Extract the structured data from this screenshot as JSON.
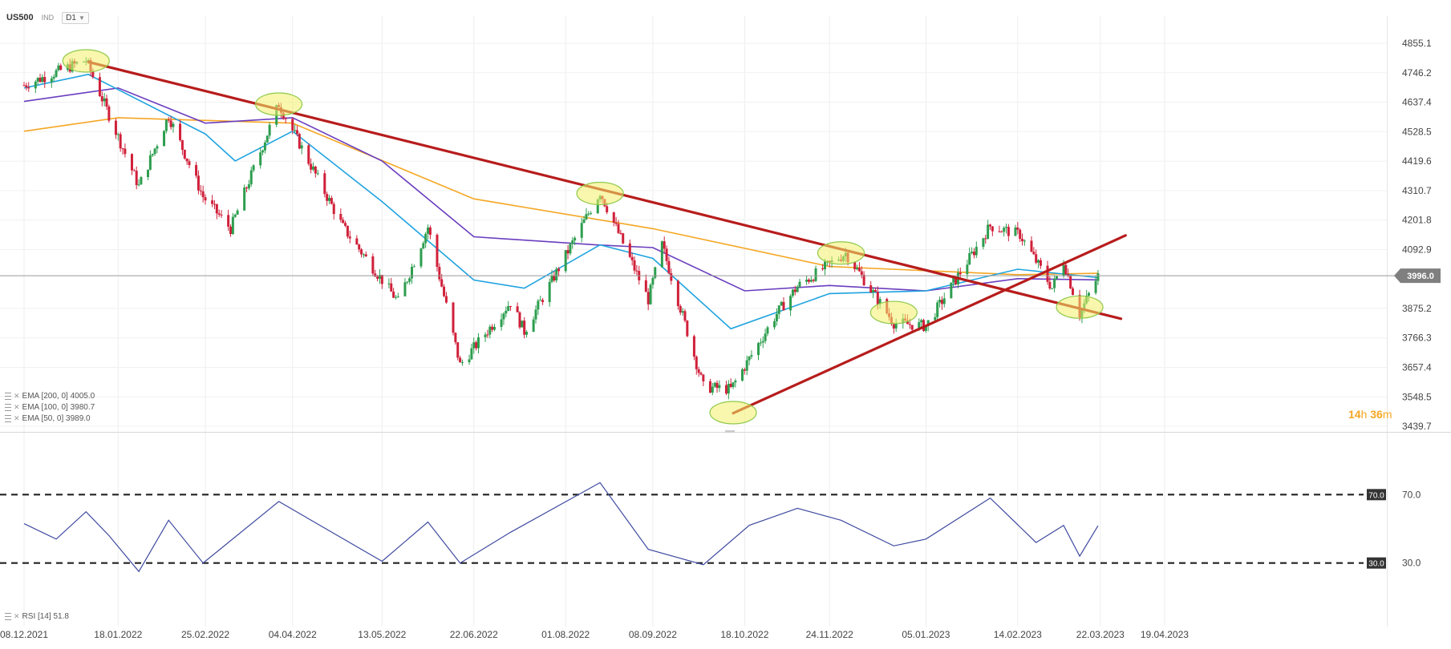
{
  "header": {
    "symbol": "US500",
    "instrument_type": "IND",
    "timeframe": "D1"
  },
  "price_axis": {
    "current_price_label": "3996.0",
    "current_price_color": "#7f7f7f"
  },
  "indicators": [
    {
      "label": "EMA [200, 0] 4005.0",
      "color": "#f5a623"
    },
    {
      "label": "EMA [100, 0] 3980.7",
      "color": "#6a3dbf"
    },
    {
      "label": "EMA [50, 0] 3989.0",
      "color": "#1fa3e0"
    }
  ],
  "rsi_legend": "RSI [14] 51.8",
  "countdown": {
    "hours": "14",
    "h_unit": "h",
    "minutes": "36",
    "m_unit": "m"
  },
  "chart_data": [
    {
      "type": "candlestick",
      "title": "US500",
      "timeframe": "D1",
      "x_ticks": [
        "08.12.2021",
        "18.01.2022",
        "25.02.2022",
        "04.04.2022",
        "13.05.2022",
        "22.06.2022",
        "01.08.2022",
        "08.09.2022",
        "18.10.2022",
        "24.11.2022",
        "05.01.2023",
        "14.02.2023",
        "22.03.2023",
        "19.04.2023"
      ],
      "y_ticks": [
        "4855.1",
        "4746.2",
        "4637.4",
        "4528.5",
        "4419.6",
        "4310.7",
        "4201.8",
        "4092.9",
        "3875.2",
        "3766.3",
        "3657.4",
        "3548.5",
        "3439.7"
      ],
      "ylim": [
        3439.7,
        4855.1
      ],
      "current_price": 3996.0,
      "close_trend": [
        {
          "date": "2021-12-08",
          "close": 4700
        },
        {
          "date": "2022-01-04",
          "close": 4793
        },
        {
          "date": "2022-01-27",
          "close": 4326
        },
        {
          "date": "2022-02-09",
          "close": 4587
        },
        {
          "date": "2022-02-24",
          "close": 4288
        },
        {
          "date": "2022-03-08",
          "close": 4170
        },
        {
          "date": "2022-03-29",
          "close": 4631
        },
        {
          "date": "2022-04-26",
          "close": 4175
        },
        {
          "date": "2022-05-20",
          "close": 3900
        },
        {
          "date": "2022-06-02",
          "close": 4176
        },
        {
          "date": "2022-06-16",
          "close": 3666
        },
        {
          "date": "2022-07-08",
          "close": 3899
        },
        {
          "date": "2022-07-14",
          "close": 3790
        },
        {
          "date": "2022-08-16",
          "close": 4305
        },
        {
          "date": "2022-09-06",
          "close": 3908
        },
        {
          "date": "2022-09-12",
          "close": 4110
        },
        {
          "date": "2022-09-30",
          "close": 3585
        },
        {
          "date": "2022-10-12",
          "close": 3577
        },
        {
          "date": "2022-11-01",
          "close": 3856
        },
        {
          "date": "2022-11-10",
          "close": 3956
        },
        {
          "date": "2022-12-01",
          "close": 4080
        },
        {
          "date": "2022-12-22",
          "close": 3822
        },
        {
          "date": "2023-01-05",
          "close": 3810
        },
        {
          "date": "2023-02-02",
          "close": 4180
        },
        {
          "date": "2023-02-15",
          "close": 4148
        },
        {
          "date": "2023-03-01",
          "close": 3951
        },
        {
          "date": "2023-03-06",
          "close": 4050
        },
        {
          "date": "2023-03-13",
          "close": 3855
        },
        {
          "date": "2023-03-21",
          "close": 3996
        }
      ],
      "ema_series": [
        {
          "name": "EMA [200, 0]",
          "color": "#f5a623",
          "points": [
            {
              "date": "2021-12-08",
              "value": 4530
            },
            {
              "date": "2022-01-18",
              "value": 4580
            },
            {
              "date": "2022-04-04",
              "value": 4560
            },
            {
              "date": "2022-06-22",
              "value": 4280
            },
            {
              "date": "2022-09-08",
              "value": 4170
            },
            {
              "date": "2022-11-24",
              "value": 4030
            },
            {
              "date": "2023-02-14",
              "value": 4000
            },
            {
              "date": "2023-03-21",
              "value": 4005
            }
          ]
        },
        {
          "name": "EMA [100, 0]",
          "color": "#6a3dbf",
          "points": [
            {
              "date": "2021-12-08",
              "value": 4640
            },
            {
              "date": "2022-01-18",
              "value": 4690
            },
            {
              "date": "2022-02-25",
              "value": 4560
            },
            {
              "date": "2022-04-04",
              "value": 4580
            },
            {
              "date": "2022-05-13",
              "value": 4420
            },
            {
              "date": "2022-06-22",
              "value": 4140
            },
            {
              "date": "2022-08-14",
              "value": 4110
            },
            {
              "date": "2022-09-08",
              "value": 4100
            },
            {
              "date": "2022-10-18",
              "value": 3940
            },
            {
              "date": "2022-11-24",
              "value": 3960
            },
            {
              "date": "2023-01-05",
              "value": 3940
            },
            {
              "date": "2023-02-14",
              "value": 3985
            },
            {
              "date": "2023-03-21",
              "value": 3980.7
            }
          ]
        },
        {
          "name": "EMA [50, 0]",
          "color": "#1fa3e0",
          "points": [
            {
              "date": "2021-12-08",
              "value": 4690
            },
            {
              "date": "2022-01-05",
              "value": 4740
            },
            {
              "date": "2022-02-25",
              "value": 4520
            },
            {
              "date": "2022-03-10",
              "value": 4420
            },
            {
              "date": "2022-04-04",
              "value": 4530
            },
            {
              "date": "2022-05-13",
              "value": 4270
            },
            {
              "date": "2022-06-22",
              "value": 3980
            },
            {
              "date": "2022-07-14",
              "value": 3950
            },
            {
              "date": "2022-08-16",
              "value": 4110
            },
            {
              "date": "2022-09-08",
              "value": 4060
            },
            {
              "date": "2022-10-12",
              "value": 3800
            },
            {
              "date": "2022-11-24",
              "value": 3930
            },
            {
              "date": "2023-01-05",
              "value": 3940
            },
            {
              "date": "2023-02-14",
              "value": 4020
            },
            {
              "date": "2023-03-21",
              "value": 3989
            }
          ]
        }
      ],
      "trendlines": [
        {
          "name": "descending resistance",
          "color": "#b71c1c",
          "from": {
            "date": "2022-01-05",
            "value": 4786
          },
          "to": {
            "date": "2023-03-31",
            "value": 3837
          }
        },
        {
          "name": "ascending support",
          "color": "#b71c1c",
          "from": {
            "date": "2022-10-13",
            "value": 3488
          },
          "to": {
            "date": "2023-04-02",
            "value": 4145
          }
        }
      ],
      "highlights": [
        {
          "date": "2022-01-04",
          "value": 4790
        },
        {
          "date": "2022-03-29",
          "value": 4630
        },
        {
          "date": "2022-08-16",
          "value": 4300
        },
        {
          "date": "2022-11-29",
          "value": 4080
        },
        {
          "date": "2022-12-22",
          "value": 3860
        },
        {
          "date": "2022-10-13",
          "value": 3490
        },
        {
          "date": "2023-03-13",
          "value": 3880
        }
      ]
    },
    {
      "type": "line",
      "title": "RSI [14]",
      "last_value": 51.8,
      "color": "#3f4ba0",
      "ylim": [
        20,
        80
      ],
      "levels": [
        {
          "value": 70,
          "label": "70.0"
        },
        {
          "value": 30,
          "label": "30.0"
        }
      ],
      "series": [
        {
          "date": "2021-12-08",
          "value": 53
        },
        {
          "date": "2021-12-22",
          "value": 44
        },
        {
          "date": "2022-01-04",
          "value": 60
        },
        {
          "date": "2022-01-14",
          "value": 46
        },
        {
          "date": "2022-01-27",
          "value": 25
        },
        {
          "date": "2022-02-09",
          "value": 55
        },
        {
          "date": "2022-02-24",
          "value": 30
        },
        {
          "date": "2022-03-29",
          "value": 66
        },
        {
          "date": "2022-05-13",
          "value": 31
        },
        {
          "date": "2022-06-02",
          "value": 54
        },
        {
          "date": "2022-06-16",
          "value": 30
        },
        {
          "date": "2022-07-08",
          "value": 48
        },
        {
          "date": "2022-08-16",
          "value": 77
        },
        {
          "date": "2022-09-06",
          "value": 38
        },
        {
          "date": "2022-09-30",
          "value": 29
        },
        {
          "date": "2022-10-20",
          "value": 52
        },
        {
          "date": "2022-11-10",
          "value": 62
        },
        {
          "date": "2022-11-29",
          "value": 55
        },
        {
          "date": "2022-12-22",
          "value": 40
        },
        {
          "date": "2023-01-05",
          "value": 44
        },
        {
          "date": "2023-02-02",
          "value": 68
        },
        {
          "date": "2023-02-22",
          "value": 42
        },
        {
          "date": "2023-03-06",
          "value": 52
        },
        {
          "date": "2023-03-13",
          "value": 34
        },
        {
          "date": "2023-03-21",
          "value": 51.8
        }
      ]
    }
  ]
}
